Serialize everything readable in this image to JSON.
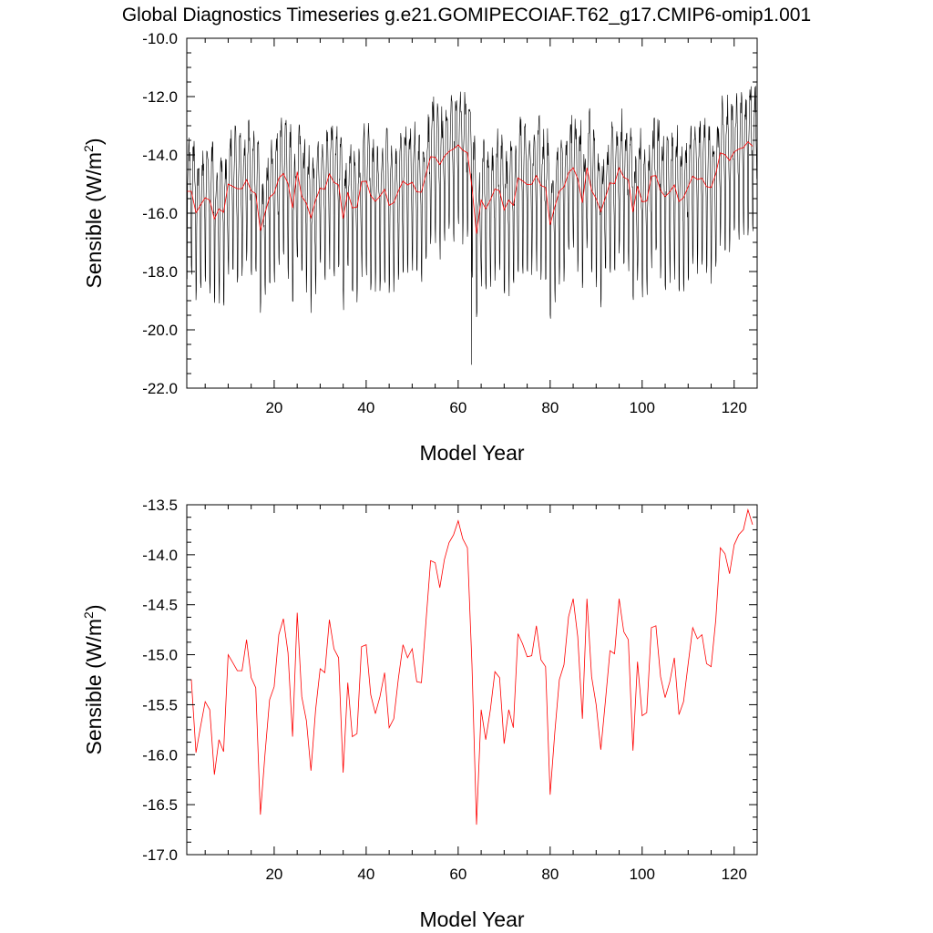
{
  "colors": {
    "monthly": "#000000",
    "annual": "#ff0000",
    "axis": "#000000",
    "background": "#ffffff"
  },
  "chart_data": [
    {
      "type": "line",
      "title": "Global Diagnostics Timeseries g.e21.GOMIPECOIAF.T62_g17.CMIP6-omip1.001",
      "xlabel": "Model Year",
      "ylabel_main": "Sensible (W/m",
      "ylabel_sup": "2",
      "ylabel_close": ")",
      "xlim": [
        1,
        125
      ],
      "ylim": [
        -22.0,
        -10.0
      ],
      "xticks": [
        20,
        40,
        60,
        80,
        100,
        120
      ],
      "xtick_labels": [
        "20",
        "40",
        "60",
        "80",
        "100",
        "120"
      ],
      "yticks": [
        -22.0,
        -20.0,
        -18.0,
        -16.0,
        -14.0,
        -12.0,
        -10.0
      ],
      "ytick_labels": [
        "-22.0",
        "-20.0",
        "-18.0",
        "-16.0",
        "-14.0",
        "-12.0",
        "-10.0"
      ],
      "series": [
        {
          "role": "monthly",
          "x_start": 1,
          "step": 0.0833333,
          "annual_cycle_min": [
            -18.4,
            -16.8
          ],
          "annual_cycle_max": [
            -13.2,
            -12.0
          ],
          "anomaly": {
            "x": 62.9,
            "y": -21.2
          }
        },
        {
          "role": "annual",
          "x": [
            1,
            2,
            3,
            4,
            5,
            6,
            7,
            8,
            9,
            10,
            11,
            12,
            13,
            14,
            15,
            16,
            17,
            18,
            19,
            20,
            21,
            22,
            23,
            24,
            25,
            26,
            27,
            28,
            29,
            30,
            31,
            32,
            33,
            34,
            35,
            36,
            37,
            38,
            39,
            40,
            41,
            42,
            43,
            44,
            45,
            46,
            47,
            48,
            49,
            50,
            51,
            52,
            53,
            54,
            55,
            56,
            57,
            58,
            59,
            60,
            61,
            62,
            63,
            64,
            65,
            66,
            67,
            68,
            69,
            70,
            71,
            72,
            73,
            74,
            75,
            76,
            77,
            78,
            79,
            80,
            81,
            82,
            83,
            84,
            85,
            86,
            87,
            88,
            89,
            90,
            91,
            92,
            93,
            94,
            95,
            96,
            97,
            98,
            99,
            100,
            101,
            102,
            103,
            104,
            105,
            106,
            107,
            108,
            109,
            110,
            111,
            112,
            113,
            114,
            115,
            116,
            117,
            118,
            119,
            120,
            121,
            122,
            123,
            124
          ],
          "y": [
            -15.25,
            -15.25,
            -15.98,
            -15.72,
            -15.47,
            -15.55,
            -16.2,
            -15.85,
            -15.97,
            -15.0,
            -15.08,
            -15.16,
            -15.16,
            -14.85,
            -15.23,
            -15.33,
            -16.6,
            -16.0,
            -15.45,
            -15.32,
            -14.8,
            -14.64,
            -14.98,
            -15.82,
            -14.58,
            -15.42,
            -15.66,
            -16.16,
            -15.55,
            -15.14,
            -15.18,
            -14.65,
            -14.94,
            -15.03,
            -16.18,
            -15.28,
            -15.82,
            -15.79,
            -14.92,
            -14.9,
            -15.4,
            -15.59,
            -15.42,
            -15.18,
            -15.73,
            -15.64,
            -15.24,
            -14.9,
            -15.03,
            -14.94,
            -15.27,
            -15.28,
            -14.67,
            -14.06,
            -14.08,
            -14.33,
            -14.05,
            -13.88,
            -13.8,
            -13.66,
            -13.84,
            -13.93,
            -15.1,
            -16.7,
            -15.55,
            -15.85,
            -15.55,
            -15.17,
            -15.23,
            -15.89,
            -15.55,
            -15.73,
            -14.79,
            -14.89,
            -15.02,
            -15.01,
            -14.71,
            -15.05,
            -15.12,
            -16.4,
            -15.78,
            -15.25,
            -15.1,
            -14.62,
            -14.44,
            -14.82,
            -15.64,
            -14.44,
            -15.22,
            -15.5,
            -15.95,
            -15.47,
            -14.96,
            -14.99,
            -14.44,
            -14.77,
            -14.85,
            -15.96,
            -15.07,
            -15.61,
            -15.58,
            -14.73,
            -14.71,
            -15.22,
            -15.43,
            -15.27,
            -15.03,
            -15.6,
            -15.47,
            -15.09,
            -14.73,
            -14.84,
            -14.8,
            -15.09,
            -15.12,
            -14.65,
            -13.93,
            -13.99,
            -14.19,
            -13.9,
            -13.8,
            -13.75,
            -13.55,
            -13.7
          ]
        }
      ]
    },
    {
      "type": "line",
      "xlabel": "Model Year",
      "ylabel_main": "Sensible (W/m",
      "ylabel_sup": "2",
      "ylabel_close": ")",
      "xlim": [
        1,
        125
      ],
      "ylim": [
        -17.0,
        -13.5
      ],
      "xticks": [
        20,
        40,
        60,
        80,
        100,
        120
      ],
      "xtick_labels": [
        "20",
        "40",
        "60",
        "80",
        "100",
        "120"
      ],
      "yticks": [
        -17.0,
        -16.5,
        -16.0,
        -15.5,
        -15.0,
        -14.5,
        -14.0,
        -13.5
      ],
      "ytick_labels": [
        "-17.0",
        "-16.5",
        "-16.0",
        "-15.5",
        "-15.0",
        "-14.5",
        "-14.0",
        "-13.5"
      ],
      "series": [
        {
          "role": "annual",
          "same_as_panel": 0
        }
      ]
    }
  ]
}
